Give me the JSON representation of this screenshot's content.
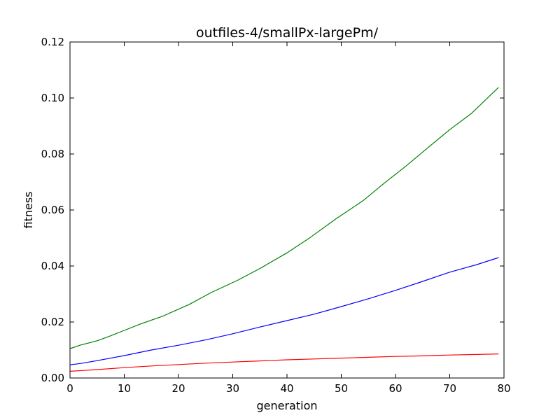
{
  "chart_data": {
    "type": "line",
    "title": "outfiles-4/smallPx-largePm/",
    "xlabel": "generation",
    "ylabel": "fitness",
    "xlim": [
      0,
      80
    ],
    "ylim": [
      0,
      0.12
    ],
    "xticks": [
      0,
      10,
      20,
      30,
      40,
      50,
      60,
      70,
      80
    ],
    "xtick_labels": [
      "0",
      "10",
      "20",
      "30",
      "40",
      "50",
      "60",
      "70",
      "80"
    ],
    "yticks": [
      0,
      0.02,
      0.04,
      0.06,
      0.08,
      0.1,
      0.12
    ],
    "ytick_labels": [
      "0.00",
      "0.02",
      "0.04",
      "0.06",
      "0.08",
      "0.10",
      "0.12"
    ],
    "grid": false,
    "legend": "none",
    "series": [
      {
        "color": "#008000",
        "x": [
          0,
          2,
          5,
          7,
          10,
          13,
          17,
          22,
          26,
          31,
          35,
          40,
          44,
          49,
          54,
          58,
          62,
          66,
          70,
          74,
          79
        ],
        "y": [
          0.0105,
          0.0118,
          0.0133,
          0.0147,
          0.017,
          0.0193,
          0.022,
          0.0263,
          0.0305,
          0.035,
          0.0391,
          0.0447,
          0.0498,
          0.0568,
          0.0633,
          0.0697,
          0.0758,
          0.0823,
          0.0887,
          0.0945,
          0.1038
        ]
      },
      {
        "color": "#0000ff",
        "x": [
          0,
          2,
          5,
          10,
          15,
          20,
          25,
          30,
          35,
          40,
          45,
          50,
          55,
          60,
          65,
          70,
          75,
          79
        ],
        "y": [
          0.0047,
          0.0052,
          0.0062,
          0.008,
          0.01,
          0.0117,
          0.0136,
          0.0158,
          0.0182,
          0.0205,
          0.0228,
          0.0255,
          0.0283,
          0.0313,
          0.0345,
          0.0378,
          0.0405,
          0.043
        ]
      },
      {
        "color": "#ff0000",
        "x": [
          0,
          5,
          10,
          15,
          20,
          25,
          30,
          35,
          40,
          45,
          50,
          55,
          60,
          65,
          70,
          75,
          79
        ],
        "y": [
          0.0024,
          0.003,
          0.0037,
          0.0043,
          0.0048,
          0.0053,
          0.0057,
          0.0061,
          0.0065,
          0.0068,
          0.0071,
          0.0074,
          0.0077,
          0.0079,
          0.0082,
          0.0084,
          0.0086
        ]
      }
    ]
  }
}
